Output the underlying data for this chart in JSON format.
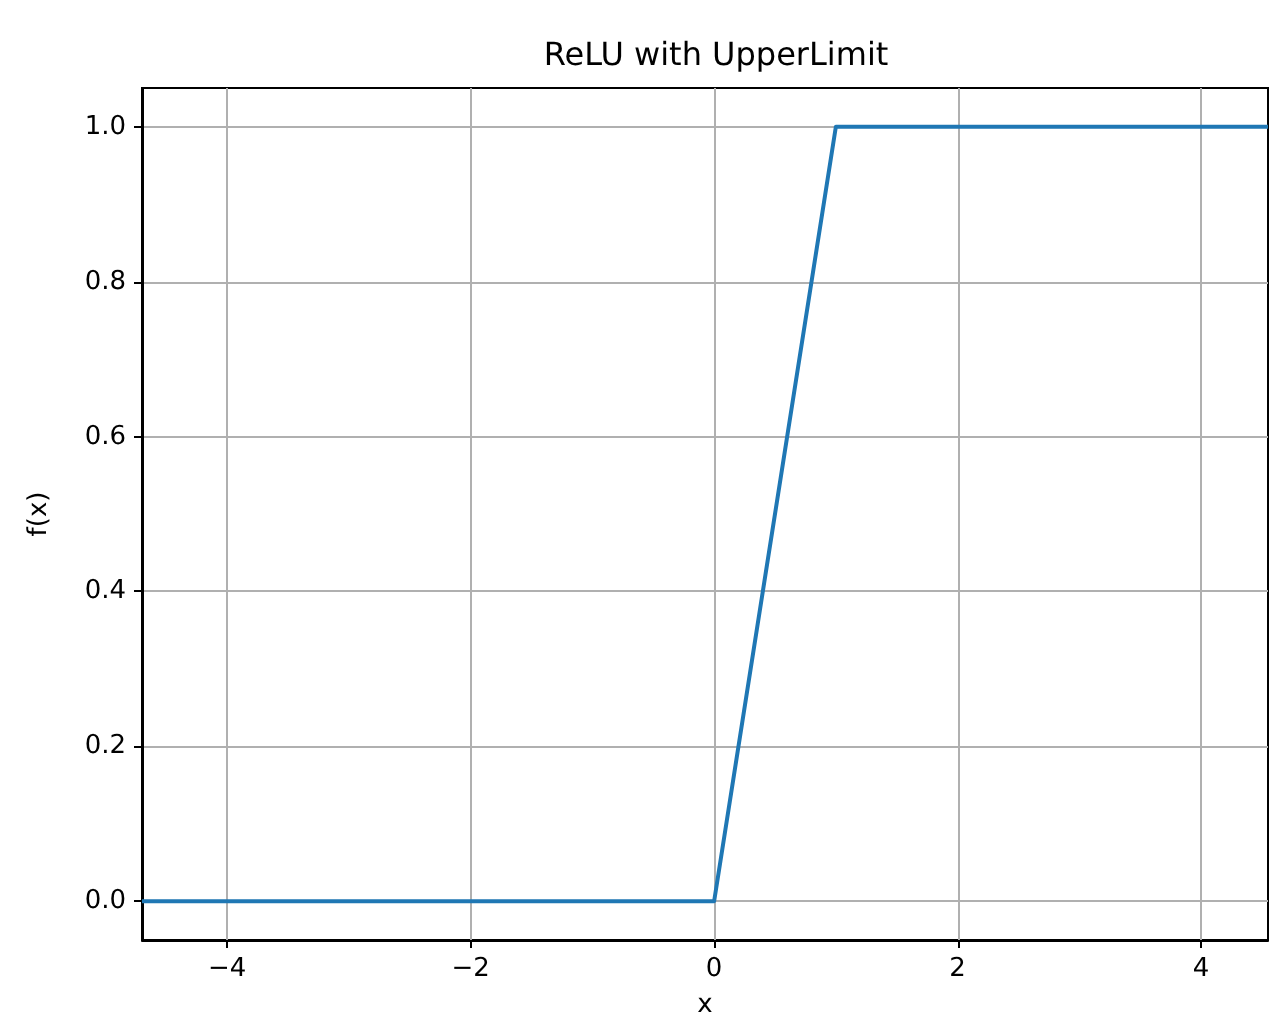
{
  "chart_data": {
    "type": "line",
    "title": "ReLU with UpperLimit",
    "xlabel": "x",
    "ylabel": "f(x)",
    "x": [
      -4.7,
      0,
      1,
      4.55
    ],
    "series": [
      {
        "color": "#1f77b4",
        "values": [
          0,
          0,
          1,
          1
        ]
      }
    ],
    "xlim": [
      -4.7,
      4.55
    ],
    "ylim": [
      -0.05,
      1.05
    ],
    "xticks": [
      {
        "value": -4,
        "label": "−4"
      },
      {
        "value": -2,
        "label": "−2"
      },
      0,
      2,
      4
    ],
    "yticks": [
      {
        "value": 0,
        "label": "0.0"
      },
      {
        "value": 0.2,
        "label": "0.2"
      },
      {
        "value": 0.4,
        "label": "0.4"
      },
      {
        "value": 0.6,
        "label": "0.6"
      },
      {
        "value": 0.8,
        "label": "0.8"
      },
      {
        "value": 1,
        "label": "1.0"
      }
    ],
    "grid": true,
    "marker": "none",
    "line_style": "solid"
  }
}
